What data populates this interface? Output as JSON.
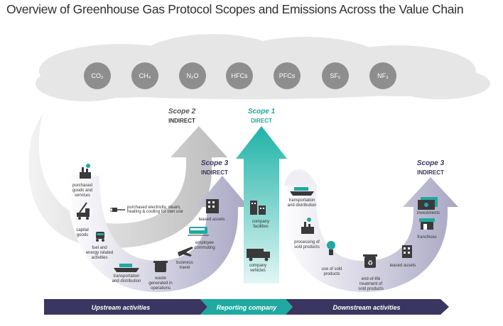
{
  "title": "Overview of Greenhouse Gas Protocol Scopes and Emissions Across the Value Chain",
  "gases": [
    "CO₂",
    "CH₄",
    "N₂O",
    "HFCs",
    "PFCs",
    "SF₆",
    "NF₃"
  ],
  "scopes": {
    "scope2": {
      "title": "Scope 2",
      "subtitle": "INDIRECT"
    },
    "scope1": {
      "title": "Scope 1",
      "subtitle": "DIRECT"
    },
    "scope3_upstream": {
      "title": "Scope 3",
      "subtitle": "INDIRECT"
    },
    "scope3_downstream": {
      "title": "Scope 3",
      "subtitle": "INDIRECT"
    }
  },
  "upstream_items": {
    "purchased_goods_1": "purchased",
    "purchased_goods_2": "goods and",
    "purchased_goods_3": "services",
    "capital_goods_1": "capital",
    "capital_goods_2": "goods",
    "fuel_1": "fuel and",
    "fuel_2": "energy related",
    "fuel_3": "activities",
    "transport_1": "transportation",
    "transport_2": "and distribution",
    "waste_1": "waste",
    "waste_2": "generated in",
    "waste_3": "operations",
    "travel_1": "business",
    "travel_2": "travel",
    "commuting_1": "employee",
    "commuting_2": "commuting",
    "leased": "leased assets",
    "electricity_1": "purchased electricity, steam,",
    "electricity_2": "heating & cooling for own use"
  },
  "company_items": {
    "facilities_1": "company",
    "facilities_2": "facilities",
    "vehicles_1": "company",
    "vehicles_2": "vehicles"
  },
  "downstream_items": {
    "transport_1": "transportation",
    "transport_2": "and distribution",
    "processing_1": "processing of",
    "processing_2": "sold products",
    "use_1": "use of sold",
    "use_2": "products",
    "eol_1": "end-of-life",
    "eol_2": "treatment of",
    "eol_3": "sold products",
    "leased": "leased assets",
    "franchises": "franchises",
    "investments": "investments"
  },
  "value_chain": {
    "upstream": "Upstream activities",
    "reporting": "Reporting company",
    "downstream": "Downstream activities"
  },
  "colors": {
    "upstream_band": "#3b3561",
    "reporting_band": "#1fa9a0",
    "scope1": "#1fa9a0",
    "scope3": "#3b3561",
    "gas_circle": "#8e8e8e"
  }
}
